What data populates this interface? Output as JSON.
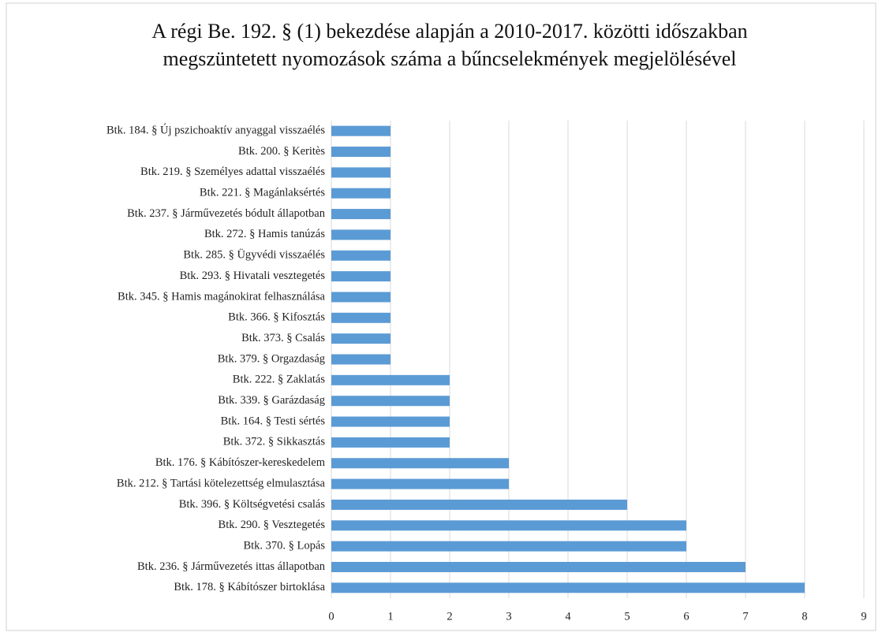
{
  "chart_data": {
    "type": "barh",
    "title": "A régi Be. 192. § (1) bekezdése alapján a 2010-2017. közötti időszakban megszüntetett nyomozások száma a bűncselekmények megjelölésével",
    "categories": [
      "Btk. 184. § Új pszichoaktív anyaggal visszaélés",
      "Btk. 200. § Keritès",
      "Btk. 219. § Személyes adattal visszaélés",
      "Btk. 221. § Magánlaksértés",
      "Btk. 237. § Járművezetés bódult állapotban",
      "Btk. 272. § Hamis tanúzás",
      "Btk. 285. § Ügyvédi visszaélés",
      "Btk. 293. § Hivatali vesztegetés",
      "Btk. 345. § Hamis magánokirat felhasználása",
      "Btk. 366. § Kifosztás",
      "Btk. 373. § Csalás",
      "Btk. 379. § Orgazdaság",
      "Btk. 222. § Zaklatás",
      "Btk. 339. § Garázdaság",
      "Btk. 164. § Testi sértés",
      "Btk. 372. § Sikkasztás",
      "Btk. 176. § Kábítószer-kereskedelem",
      "Btk. 212. § Tartási kötelezettség elmulasztása",
      "Btk. 396. § Költségvetési csalás",
      "Btk. 290. § Vesztegetés",
      "Btk. 370. § Lopás",
      "Btk. 236. § Járművezetés ittas állapotban",
      "Btk. 178. § Kábítószer birtoklása"
    ],
    "values": [
      1,
      1,
      1,
      1,
      1,
      1,
      1,
      1,
      1,
      1,
      1,
      1,
      2,
      2,
      2,
      2,
      3,
      3,
      5,
      6,
      6,
      7,
      8
    ],
    "color": "#5b9bd5",
    "xlim": [
      0,
      9
    ],
    "xticks": [
      0,
      1,
      2,
      3,
      4,
      5,
      6,
      7,
      8,
      9
    ],
    "grid": true
  }
}
